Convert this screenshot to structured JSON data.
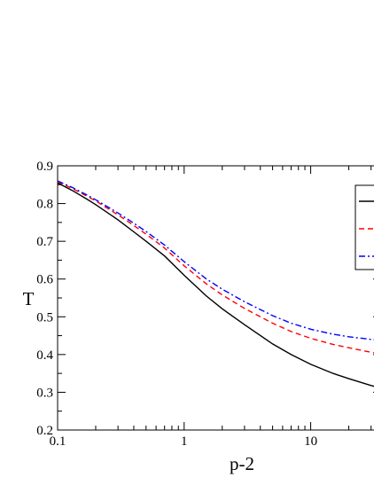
{
  "chart_data": {
    "type": "line",
    "title": "",
    "xlabel": "p-2",
    "ylabel": "T",
    "xscale": "log",
    "xlim": [
      0.1,
      36
    ],
    "ylim": [
      0.2,
      0.9
    ],
    "grid": false,
    "legend_position": "right",
    "x_ticks": [
      0.1,
      1,
      10
    ],
    "x_tick_labels": [
      "0.1",
      "1",
      "10"
    ],
    "y_ticks": [
      0.2,
      0.3,
      0.4,
      0.5,
      0.6,
      0.7,
      0.8,
      0.9
    ],
    "y_tick_labels": [
      "0.2",
      "0.3",
      "0.4",
      "0.5",
      "0.6",
      "0.7",
      "0.8",
      "0.9"
    ],
    "series": [
      {
        "color": "#000000",
        "line_style": "solid",
        "x": [
          0.1,
          0.13,
          0.17,
          0.2,
          0.3,
          0.4,
          0.5,
          0.7,
          1,
          1.5,
          2,
          3,
          5,
          7,
          10,
          15,
          20,
          30,
          36
        ],
        "y": [
          0.855,
          0.835,
          0.812,
          0.797,
          0.757,
          0.725,
          0.7,
          0.661,
          0.61,
          0.555,
          0.521,
          0.479,
          0.428,
          0.4,
          0.374,
          0.35,
          0.336,
          0.318,
          0.311
        ]
      },
      {
        "color": "#ff0000",
        "line_style": "dashed",
        "x": [
          0.1,
          0.13,
          0.17,
          0.2,
          0.3,
          0.4,
          0.5,
          0.7,
          1,
          1.5,
          2,
          3,
          5,
          7,
          10,
          15,
          20,
          30,
          36
        ],
        "y": [
          0.858,
          0.84,
          0.82,
          0.807,
          0.77,
          0.742,
          0.719,
          0.682,
          0.635,
          0.587,
          0.558,
          0.522,
          0.483,
          0.461,
          0.443,
          0.427,
          0.418,
          0.406,
          0.401
        ]
      },
      {
        "color": "#0000ff",
        "line_style": "dash-dot",
        "x": [
          0.1,
          0.13,
          0.17,
          0.2,
          0.3,
          0.4,
          0.5,
          0.7,
          1,
          1.5,
          2,
          3,
          5,
          7,
          10,
          15,
          20,
          30,
          36
        ],
        "y": [
          0.86,
          0.843,
          0.823,
          0.81,
          0.775,
          0.748,
          0.726,
          0.69,
          0.646,
          0.6,
          0.573,
          0.54,
          0.503,
          0.483,
          0.467,
          0.454,
          0.447,
          0.44,
          0.438
        ]
      }
    ]
  }
}
